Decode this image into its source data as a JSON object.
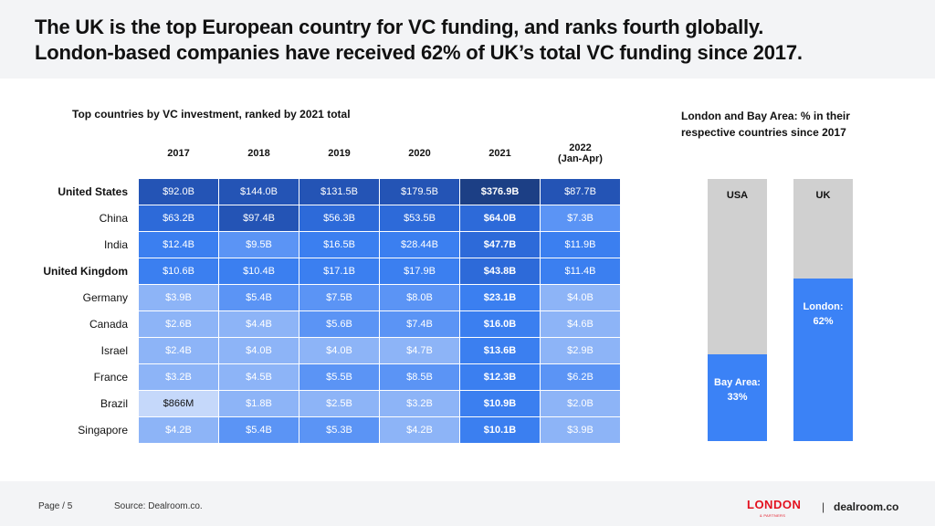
{
  "headline": {
    "line1": "The UK is the top European country for VC funding, and ranks fourth globally.",
    "line2": "London-based companies have received 62% of UK’s total VC funding since 2017."
  },
  "chart_data": [
    {
      "type": "table",
      "title": "Top countries by VC investment, ranked by 2021 total",
      "columns": [
        {
          "line1": "2017",
          "line2": ""
        },
        {
          "line1": "2018",
          "line2": ""
        },
        {
          "line1": "2019",
          "line2": ""
        },
        {
          "line1": "2020",
          "line2": ""
        },
        {
          "line1": "2021",
          "line2": ""
        },
        {
          "line1": "2022",
          "line2": "(Jan-Apr)"
        }
      ],
      "rows": [
        {
          "country": "United States",
          "highlight": true,
          "cells": [
            {
              "t": "$92.0B",
              "v": 92.0
            },
            {
              "t": "$144.0B",
              "v": 144.0
            },
            {
              "t": "$131.5B",
              "v": 131.5
            },
            {
              "t": "$179.5B",
              "v": 179.5
            },
            {
              "t": "$376.9B",
              "v": 376.9
            },
            {
              "t": "$87.7B",
              "v": 87.7
            }
          ]
        },
        {
          "country": "China",
          "highlight": false,
          "cells": [
            {
              "t": "$63.2B",
              "v": 63.2
            },
            {
              "t": "$97.4B",
              "v": 97.4
            },
            {
              "t": "$56.3B",
              "v": 56.3
            },
            {
              "t": "$53.5B",
              "v": 53.5
            },
            {
              "t": "$64.0B",
              "v": 64.0
            },
            {
              "t": "$7.3B",
              "v": 7.3
            }
          ]
        },
        {
          "country": "India",
          "highlight": false,
          "cells": [
            {
              "t": "$12.4B",
              "v": 12.4
            },
            {
              "t": "$9.5B",
              "v": 9.5
            },
            {
              "t": "$16.5B",
              "v": 16.5
            },
            {
              "t": "$28.44B",
              "v": 28.44
            },
            {
              "t": "$47.7B",
              "v": 47.7
            },
            {
              "t": "$11.9B",
              "v": 11.9
            }
          ]
        },
        {
          "country": "United Kingdom",
          "highlight": true,
          "cells": [
            {
              "t": "$10.6B",
              "v": 10.6
            },
            {
              "t": "$10.4B",
              "v": 10.4
            },
            {
              "t": "$17.1B",
              "v": 17.1
            },
            {
              "t": "$17.9B",
              "v": 17.9
            },
            {
              "t": "$43.8B",
              "v": 43.8
            },
            {
              "t": "$11.4B",
              "v": 11.4
            }
          ]
        },
        {
          "country": "Germany",
          "highlight": false,
          "cells": [
            {
              "t": "$3.9B",
              "v": 3.9
            },
            {
              "t": "$5.4B",
              "v": 5.4
            },
            {
              "t": "$7.5B",
              "v": 7.5
            },
            {
              "t": "$8.0B",
              "v": 8.0
            },
            {
              "t": "$23.1B",
              "v": 23.1
            },
            {
              "t": "$4.0B",
              "v": 4.0
            }
          ]
        },
        {
          "country": "Canada",
          "highlight": false,
          "cells": [
            {
              "t": "$2.6B",
              "v": 2.6
            },
            {
              "t": "$4.4B",
              "v": 4.4
            },
            {
              "t": "$5.6B",
              "v": 5.6
            },
            {
              "t": "$7.4B",
              "v": 7.4
            },
            {
              "t": "$16.0B",
              "v": 16.0
            },
            {
              "t": "$4.6B",
              "v": 4.6
            }
          ]
        },
        {
          "country": "Israel",
          "highlight": false,
          "cells": [
            {
              "t": "$2.4B",
              "v": 2.4
            },
            {
              "t": "$4.0B",
              "v": 4.0
            },
            {
              "t": "$4.0B",
              "v": 4.0
            },
            {
              "t": "$4.7B",
              "v": 4.7
            },
            {
              "t": "$13.6B",
              "v": 13.6
            },
            {
              "t": "$2.9B",
              "v": 2.9
            }
          ]
        },
        {
          "country": "France",
          "highlight": false,
          "cells": [
            {
              "t": "$3.2B",
              "v": 3.2
            },
            {
              "t": "$4.5B",
              "v": 4.5
            },
            {
              "t": "$5.5B",
              "v": 5.5
            },
            {
              "t": "$8.5B",
              "v": 8.5
            },
            {
              "t": "$12.3B",
              "v": 12.3
            },
            {
              "t": "$6.2B",
              "v": 6.2
            }
          ]
        },
        {
          "country": "Brazil",
          "highlight": false,
          "cells": [
            {
              "t": "$866M",
              "v": 0.866
            },
            {
              "t": "$1.8B",
              "v": 1.8
            },
            {
              "t": "$2.5B",
              "v": 2.5
            },
            {
              "t": "$3.2B",
              "v": 3.2
            },
            {
              "t": "$10.9B",
              "v": 10.9
            },
            {
              "t": "$2.0B",
              "v": 2.0
            }
          ]
        },
        {
          "country": "Singapore",
          "highlight": false,
          "cells": [
            {
              "t": "$4.2B",
              "v": 4.2
            },
            {
              "t": "$5.4B",
              "v": 5.4
            },
            {
              "t": "$5.3B",
              "v": 5.3
            },
            {
              "t": "$4.2B",
              "v": 4.2
            },
            {
              "t": "$10.1B",
              "v": 10.1
            },
            {
              "t": "$3.9B",
              "v": 3.9
            }
          ]
        }
      ]
    },
    {
      "type": "bar",
      "title": "London and Bay Area: % in their respective countries since 2017",
      "title_line1": "London and Bay Area: % in their",
      "title_line2": "respective countries since 2017",
      "categories": [
        "USA",
        "UK"
      ],
      "series": [
        {
          "name": "Bay Area",
          "values": [
            33,
            null
          ]
        },
        {
          "name": "London",
          "values": [
            null,
            62
          ]
        }
      ],
      "labels": [
        {
          "line1": "Bay Area:",
          "line2": "33%"
        },
        {
          "line1": "London:",
          "line2": "62%"
        }
      ],
      "ylim": [
        0,
        100
      ]
    }
  ],
  "colors": {
    "scale_1": "#1c3f85",
    "scale_2": "#2454b5",
    "scale_3": "#2d6ad9",
    "scale_4": "#3b7ff0",
    "scale_5": "#5b94f5",
    "scale_6": "#8db4f7",
    "scale_7": "#c5d8fa",
    "bar_fill": "#3b82f6",
    "bar_bg": "#d0d0d0"
  },
  "footer": {
    "page": "Page / 5",
    "source": "Source: Dealroom.co.",
    "logo_main": "LONDON",
    "logo_sub": "& PARTNERS",
    "separator": "|",
    "dealroom": "dealroom.co"
  }
}
